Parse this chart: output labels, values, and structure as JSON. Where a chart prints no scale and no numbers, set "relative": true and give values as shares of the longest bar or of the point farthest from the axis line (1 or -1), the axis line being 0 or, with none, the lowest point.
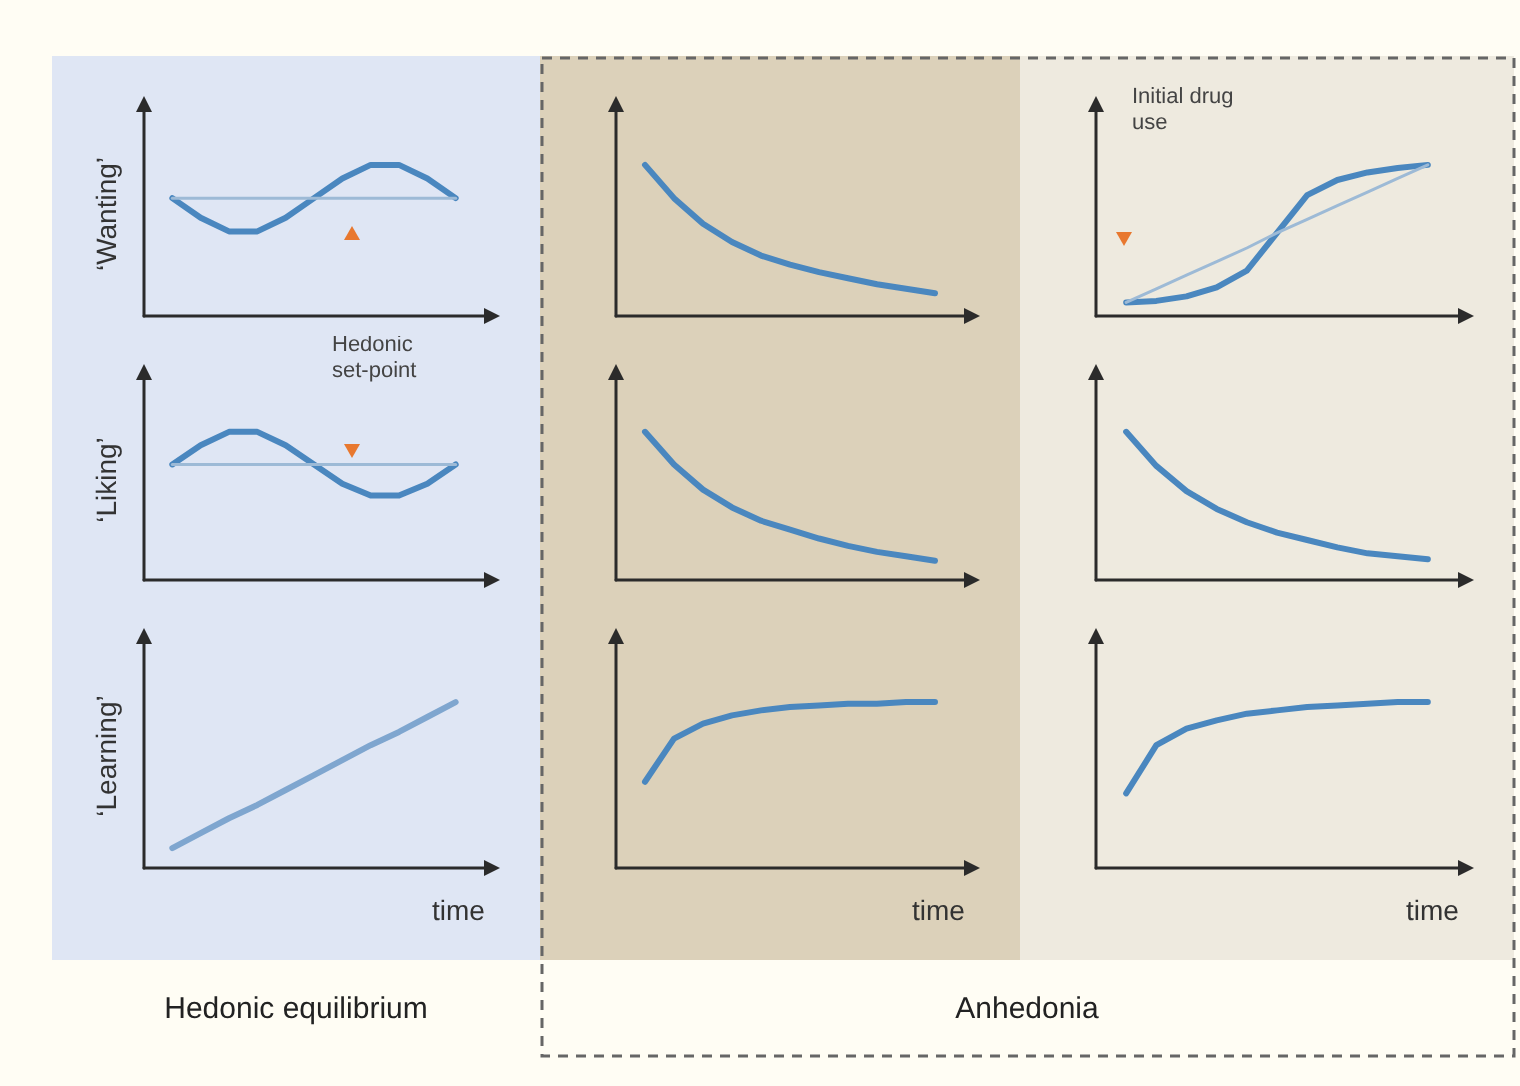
{
  "chart_data": [
    {
      "type": "line",
      "relative": true,
      "ylabel": "‘Wanting’",
      "marker": "none",
      "grid": false,
      "categories": [
        null,
        null,
        null,
        null,
        null,
        null,
        null,
        null,
        null,
        null,
        null,
        null,
        null
      ],
      "series": [
        {
          "color": "#4a87bf",
          "values": [
            null,
            0.78,
            0.65,
            0.56,
            0.56,
            0.65,
            0.78,
            0.91,
            1,
            1,
            0.91,
            0.78,
            null
          ]
        },
        {
          "color": "#9dbad6",
          "values": [
            null,
            0.78,
            0.78,
            0.78,
            0.78,
            0.78,
            0.78,
            0.78,
            0.78,
            0.78,
            0.78,
            0.78,
            null
          ]
        }
      ]
    },
    {
      "type": "line",
      "relative": true,
      "ylabel": "‘Liking’",
      "marker": "none",
      "grid": false,
      "annotations": [
        "Hedonic set-point"
      ],
      "categories": [
        null,
        null,
        null,
        null,
        null,
        null,
        null,
        null,
        null,
        null,
        null,
        null,
        null
      ],
      "series": [
        {
          "color": "#4a87bf",
          "values": [
            null,
            0.78,
            0.91,
            1,
            1,
            0.91,
            0.78,
            0.65,
            0.57,
            0.57,
            0.65,
            0.78,
            null
          ]
        },
        {
          "color": "#9dbad6",
          "values": [
            null,
            0.78,
            0.78,
            0.78,
            0.78,
            0.78,
            0.78,
            0.78,
            0.78,
            0.78,
            0.78,
            0.78,
            null
          ]
        }
      ]
    },
    {
      "type": "line",
      "relative": true,
      "ylabel": "‘Learning’",
      "xlabel": "time",
      "marker": "none",
      "grid": false,
      "annotations": [
        "Hedonic equilibrium"
      ],
      "categories": [
        null,
        null,
        null,
        null,
        null,
        null,
        null,
        null,
        null,
        null,
        null,
        null,
        null
      ],
      "series": [
        {
          "color": "#7fa6cf",
          "values": [
            null,
            0.12,
            0.21,
            0.3,
            0.38,
            0.47,
            0.56,
            0.65,
            0.74,
            0.82,
            0.91,
            1,
            null
          ]
        }
      ]
    },
    {
      "type": "line",
      "relative": true,
      "marker": "none",
      "grid": false,
      "categories": [
        null,
        null,
        null,
        null,
        null,
        null,
        null,
        null,
        null,
        null,
        null,
        null,
        null
      ],
      "series": [
        {
          "color": "#4a87bf",
          "values": [
            null,
            1,
            0.78,
            0.61,
            0.49,
            0.4,
            0.34,
            0.29,
            0.25,
            0.21,
            0.18,
            0.15,
            null
          ]
        }
      ]
    },
    {
      "type": "line",
      "relative": true,
      "marker": "none",
      "grid": false,
      "categories": [
        null,
        null,
        null,
        null,
        null,
        null,
        null,
        null,
        null,
        null,
        null,
        null,
        null
      ],
      "series": [
        {
          "color": "#4a87bf",
          "values": [
            null,
            1,
            0.78,
            0.61,
            0.49,
            0.4,
            0.34,
            0.28,
            0.23,
            0.19,
            0.16,
            0.13,
            null
          ]
        }
      ]
    },
    {
      "type": "line",
      "relative": true,
      "xlabel": "time",
      "marker": "none",
      "grid": false,
      "annotations": [
        "Anhedonia"
      ],
      "categories": [
        null,
        null,
        null,
        null,
        null,
        null,
        null,
        null,
        null,
        null,
        null,
        null,
        null
      ],
      "series": [
        {
          "color": "#4a87bf",
          "values": [
            null,
            0.52,
            0.78,
            0.87,
            0.92,
            0.95,
            0.97,
            0.98,
            0.99,
            0.99,
            1,
            1,
            null
          ]
        }
      ]
    },
    {
      "type": "line",
      "relative": true,
      "marker": "none",
      "grid": false,
      "annotations": [
        "Initial drug use"
      ],
      "categories": [
        null,
        null,
        null,
        null,
        null,
        null,
        null,
        null,
        null,
        null,
        null,
        null,
        null
      ],
      "series": [
        {
          "color": "#4a87bf",
          "values": [
            null,
            0.09,
            0.1,
            0.13,
            0.19,
            0.3,
            0.55,
            0.8,
            0.9,
            0.95,
            0.98,
            1,
            null
          ]
        },
        {
          "color": "#9dbad6",
          "values": [
            null,
            0.09,
            0.18,
            0.27,
            0.36,
            0.45,
            0.55,
            0.64,
            0.73,
            0.82,
            0.91,
            1,
            null
          ]
        }
      ]
    },
    {
      "type": "line",
      "relative": true,
      "marker": "none",
      "grid": false,
      "categories": [
        null,
        null,
        null,
        null,
        null,
        null,
        null,
        null,
        null,
        null,
        null,
        null,
        null
      ],
      "series": [
        {
          "color": "#4a87bf",
          "values": [
            null,
            1,
            0.77,
            0.6,
            0.48,
            0.39,
            0.32,
            0.27,
            0.22,
            0.18,
            0.16,
            0.14,
            null
          ]
        }
      ]
    },
    {
      "type": "line",
      "relative": true,
      "xlabel": "time",
      "marker": "none",
      "grid": false,
      "categories": [
        null,
        null,
        null,
        null,
        null,
        null,
        null,
        null,
        null,
        null,
        null,
        null,
        null
      ],
      "series": [
        {
          "color": "#4a87bf",
          "values": [
            null,
            0.45,
            0.74,
            0.84,
            0.89,
            0.93,
            0.95,
            0.97,
            0.98,
            0.99,
            1,
            1,
            null
          ]
        }
      ]
    }
  ]
}
